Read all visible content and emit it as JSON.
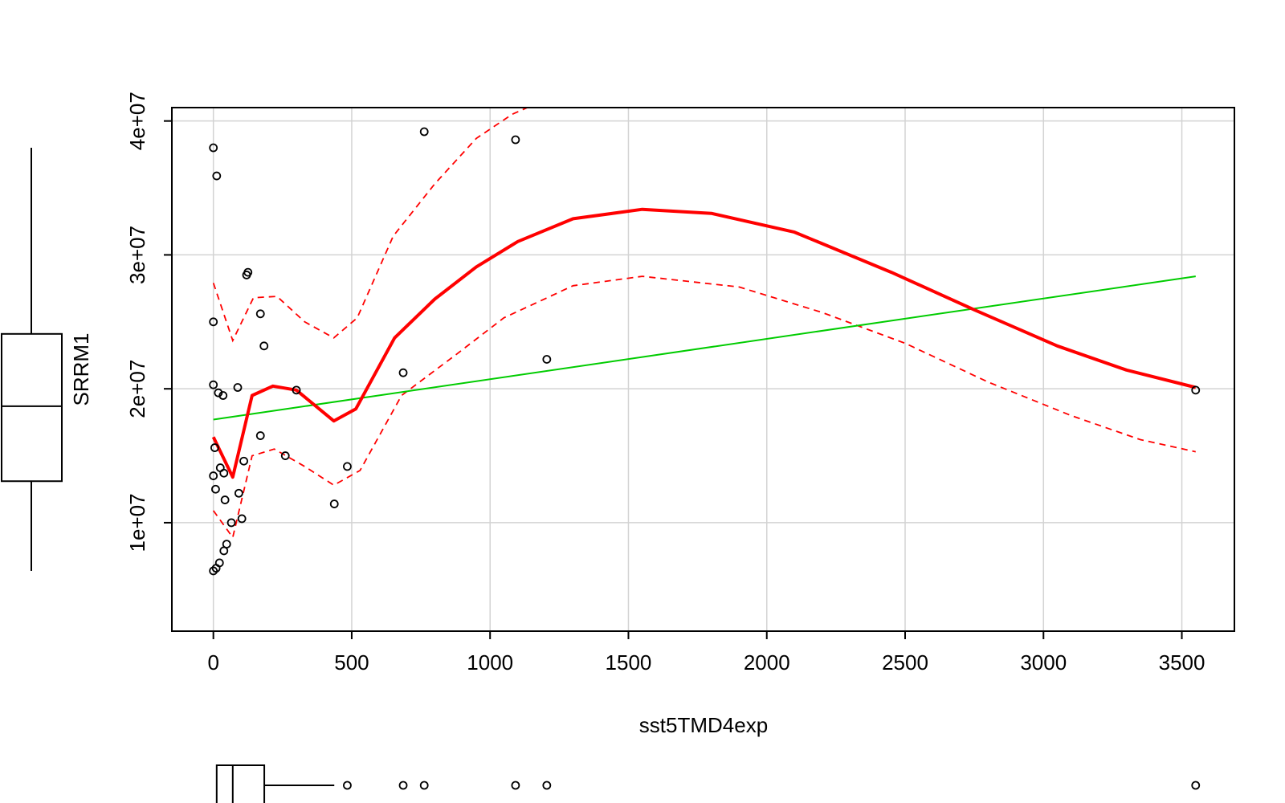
{
  "chart_data": {
    "type": "scatter",
    "title": "",
    "xlabel": "sst5TMD4exp",
    "ylabel": "SRRM1",
    "xlim": [
      -150,
      3690
    ],
    "ylim": [
      1900000,
      41000000
    ],
    "xticks": [
      0,
      500,
      1000,
      1500,
      2000,
      2500,
      3000,
      3500
    ],
    "xtick_labels": [
      "0",
      "500",
      "1000",
      "1500",
      "2000",
      "2500",
      "3000",
      "3500"
    ],
    "yticks": [
      10000000,
      20000000,
      30000000,
      40000000
    ],
    "ytick_labels": [
      "1e+07",
      "2e+07",
      "3e+07",
      "4e+07"
    ],
    "grid": true,
    "colors": {
      "points": "#000000",
      "smooth": "#ff0000",
      "linear_fit": "#00cc00",
      "grid": "#d3d3d3"
    },
    "points": [
      {
        "x": 0,
        "y": 38000000
      },
      {
        "x": 12,
        "y": 35900000
      },
      {
        "x": 0,
        "y": 25000000
      },
      {
        "x": 0,
        "y": 20300000
      },
      {
        "x": 18,
        "y": 19700000
      },
      {
        "x": 35,
        "y": 19500000
      },
      {
        "x": 5,
        "y": 15600000
      },
      {
        "x": 0,
        "y": 13500000
      },
      {
        "x": 25,
        "y": 14100000
      },
      {
        "x": 38,
        "y": 13700000
      },
      {
        "x": 8,
        "y": 12500000
      },
      {
        "x": 42,
        "y": 11700000
      },
      {
        "x": 65,
        "y": 10000000
      },
      {
        "x": 48,
        "y": 8400000
      },
      {
        "x": 38,
        "y": 7900000
      },
      {
        "x": 22,
        "y": 7000000
      },
      {
        "x": 10,
        "y": 6600000
      },
      {
        "x": 0,
        "y": 6400000
      },
      {
        "x": 88,
        "y": 20100000
      },
      {
        "x": 92,
        "y": 12200000
      },
      {
        "x": 103,
        "y": 10300000
      },
      {
        "x": 110,
        "y": 14600000
      },
      {
        "x": 120,
        "y": 28500000
      },
      {
        "x": 125,
        "y": 28700000
      },
      {
        "x": 170,
        "y": 25600000
      },
      {
        "x": 170,
        "y": 16500000
      },
      {
        "x": 183,
        "y": 23200000
      },
      {
        "x": 260,
        "y": 15000000
      },
      {
        "x": 300,
        "y": 19900000
      },
      {
        "x": 437,
        "y": 11400000
      },
      {
        "x": 484,
        "y": 14200000
      },
      {
        "x": 686,
        "y": 21200000
      },
      {
        "x": 762,
        "y": 39200000
      },
      {
        "x": 1092,
        "y": 38600000
      },
      {
        "x": 1205,
        "y": 22200000
      },
      {
        "x": 3550,
        "y": 19900000
      }
    ],
    "smooth_line": [
      {
        "x": 0,
        "y": 16400000
      },
      {
        "x": 70,
        "y": 13400000
      },
      {
        "x": 140,
        "y": 19500000
      },
      {
        "x": 215,
        "y": 20200000
      },
      {
        "x": 300,
        "y": 19900000
      },
      {
        "x": 435,
        "y": 17600000
      },
      {
        "x": 515,
        "y": 18500000
      },
      {
        "x": 655,
        "y": 23800000
      },
      {
        "x": 800,
        "y": 26700000
      },
      {
        "x": 950,
        "y": 29100000
      },
      {
        "x": 1100,
        "y": 31000000
      },
      {
        "x": 1300,
        "y": 32700000
      },
      {
        "x": 1550,
        "y": 33400000
      },
      {
        "x": 1800,
        "y": 33100000
      },
      {
        "x": 2100,
        "y": 31700000
      },
      {
        "x": 2450,
        "y": 28700000
      },
      {
        "x": 2750,
        "y": 25900000
      },
      {
        "x": 3050,
        "y": 23200000
      },
      {
        "x": 3300,
        "y": 21400000
      },
      {
        "x": 3550,
        "y": 20100000
      }
    ],
    "upper_band": [
      {
        "x": 0,
        "y": 27900000
      },
      {
        "x": 70,
        "y": 23600000
      },
      {
        "x": 145,
        "y": 26800000
      },
      {
        "x": 230,
        "y": 26900000
      },
      {
        "x": 330,
        "y": 25000000
      },
      {
        "x": 435,
        "y": 23800000
      },
      {
        "x": 520,
        "y": 25300000
      },
      {
        "x": 650,
        "y": 31400000
      },
      {
        "x": 800,
        "y": 35300000
      },
      {
        "x": 950,
        "y": 38700000
      },
      {
        "x": 1080,
        "y": 40500000
      },
      {
        "x": 1200,
        "y": 41600000
      }
    ],
    "lower_band": [
      {
        "x": 0,
        "y": 10900000
      },
      {
        "x": 70,
        "y": 8900000
      },
      {
        "x": 140,
        "y": 15000000
      },
      {
        "x": 220,
        "y": 15500000
      },
      {
        "x": 330,
        "y": 14200000
      },
      {
        "x": 435,
        "y": 12800000
      },
      {
        "x": 530,
        "y": 13900000
      },
      {
        "x": 680,
        "y": 19500000
      },
      {
        "x": 880,
        "y": 22600000
      },
      {
        "x": 1050,
        "y": 25300000
      },
      {
        "x": 1300,
        "y": 27700000
      },
      {
        "x": 1550,
        "y": 28400000
      },
      {
        "x": 1900,
        "y": 27600000
      },
      {
        "x": 2200,
        "y": 25700000
      },
      {
        "x": 2500,
        "y": 23400000
      },
      {
        "x": 2800,
        "y": 20500000
      },
      {
        "x": 3100,
        "y": 18000000
      },
      {
        "x": 3350,
        "y": 16200000
      },
      {
        "x": 3550,
        "y": 15300000
      }
    ],
    "linear_fit": [
      {
        "x": 0,
        "y": 17700000
      },
      {
        "x": 3550,
        "y": 28400000
      }
    ],
    "y_boxplot": {
      "whisker_low": 6400000,
      "q1": 13100000,
      "median": 18700000,
      "q3": 24100000,
      "whisker_high": 38000000
    },
    "x_boxplot": {
      "whisker_low": 0,
      "q1": 12,
      "median": 70,
      "q3": 184,
      "whisker_high": 437,
      "outliers": [
        484,
        686,
        762,
        1092,
        1205,
        3550
      ]
    }
  }
}
